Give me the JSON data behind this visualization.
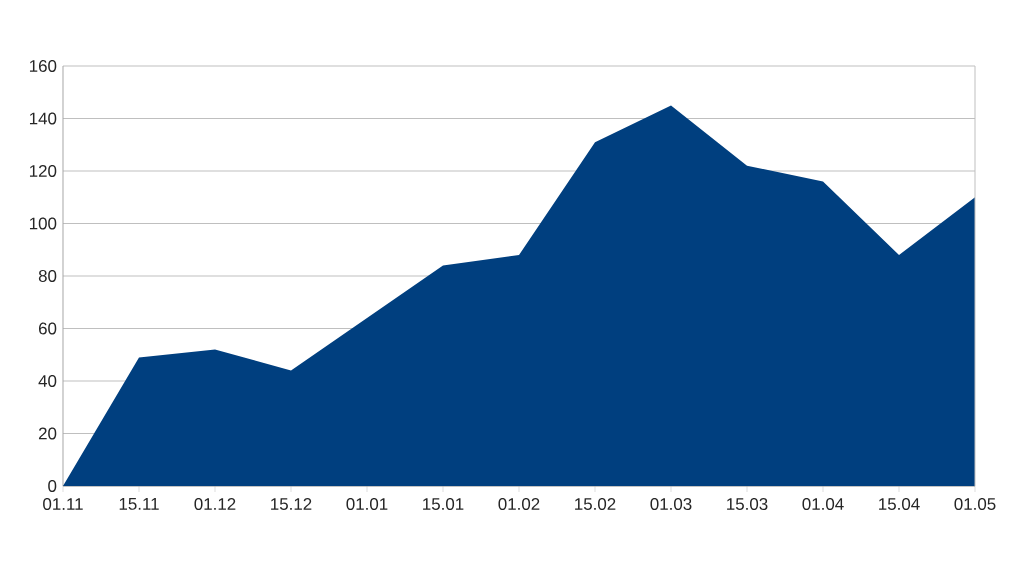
{
  "chart_data": {
    "type": "area",
    "categories": [
      "01.11",
      "15.11",
      "01.12",
      "15.12",
      "01.01",
      "15.01",
      "01.02",
      "15.02",
      "01.03",
      "15.03",
      "01.04",
      "15.04",
      "01.05"
    ],
    "values": [
      0,
      49,
      52,
      44,
      64,
      84,
      88,
      131,
      145,
      122,
      116,
      88,
      110
    ],
    "color": "#003f7f",
    "ylim": [
      0,
      160
    ],
    "yticks": [
      0,
      20,
      40,
      60,
      80,
      100,
      120,
      140,
      160
    ],
    "grid": "y"
  }
}
